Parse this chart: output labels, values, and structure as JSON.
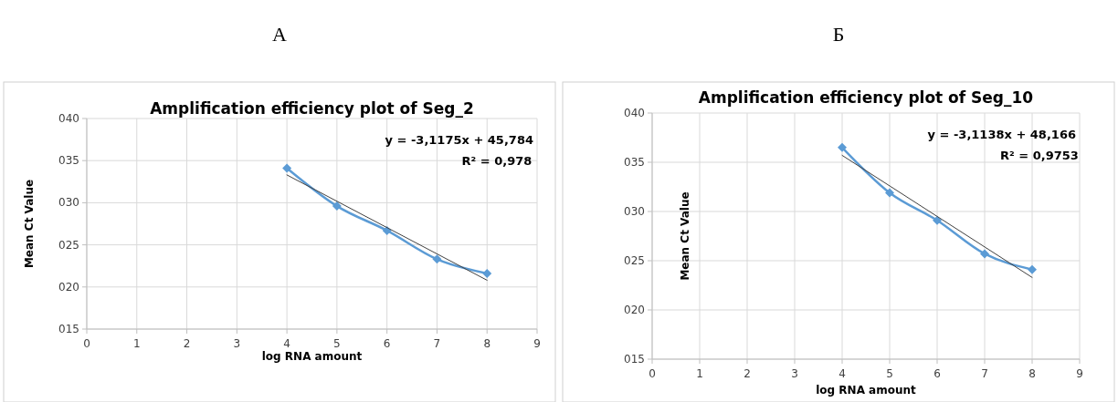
{
  "chart_data": [
    {
      "type": "line",
      "title": "Amplification efficiency plot of Seg_2",
      "xlabel": "log RNA amount",
      "ylabel": "Mean Ct Value",
      "annotations": [
        "А",
        "y = -3,1175x + 45,784",
        "R² = 0,978"
      ],
      "marker": "diamond",
      "grid": true,
      "xlim": [
        0,
        9
      ],
      "xticks": [
        0,
        1,
        2,
        3,
        4,
        5,
        6,
        7,
        8,
        9
      ],
      "ylim": [
        15,
        40
      ],
      "yticks": [
        {
          "value": 15,
          "label": "015"
        },
        {
          "value": 20,
          "label": "020"
        },
        {
          "value": 25,
          "label": "025"
        },
        {
          "value": 30,
          "label": "030"
        },
        {
          "value": 35,
          "label": "035"
        },
        {
          "value": 40,
          "label": "040"
        }
      ],
      "series": [
        {
          "color": "#5b9bd5",
          "x": [
            4,
            5,
            6,
            7,
            8
          ],
          "values": [
            34.1,
            29.6,
            26.7,
            23.3,
            21.6
          ]
        },
        {
          "color": "#404040",
          "x": [
            4,
            8
          ],
          "values": [
            33.3,
            20.8
          ],
          "marker": "none"
        }
      ]
    },
    {
      "type": "line",
      "title": "Amplification efficiency plot of Seg_10",
      "xlabel": "log RNA amount",
      "ylabel": "Mean Ct Value",
      "annotations": [
        "Б",
        "y = -3,1138x + 48,166",
        "R² = 0,9753"
      ],
      "marker": "diamond",
      "grid": true,
      "xlim": [
        0,
        9
      ],
      "xticks": [
        0,
        1,
        2,
        3,
        4,
        5,
        6,
        7,
        8,
        9
      ],
      "ylim": [
        15,
        40
      ],
      "yticks": [
        {
          "value": 15,
          "label": "015"
        },
        {
          "value": 20,
          "label": "020"
        },
        {
          "value": 25,
          "label": "025"
        },
        {
          "value": 30,
          "label": "030"
        },
        {
          "value": 35,
          "label": "035"
        },
        {
          "value": 40,
          "label": "040"
        }
      ],
      "series": [
        {
          "color": "#5b9bd5",
          "x": [
            4,
            5,
            6,
            7,
            8
          ],
          "values": [
            36.5,
            31.9,
            29.1,
            25.7,
            24.1
          ]
        },
        {
          "color": "#404040",
          "x": [
            4,
            8
          ],
          "values": [
            35.7,
            23.3
          ],
          "marker": "none"
        }
      ]
    }
  ]
}
